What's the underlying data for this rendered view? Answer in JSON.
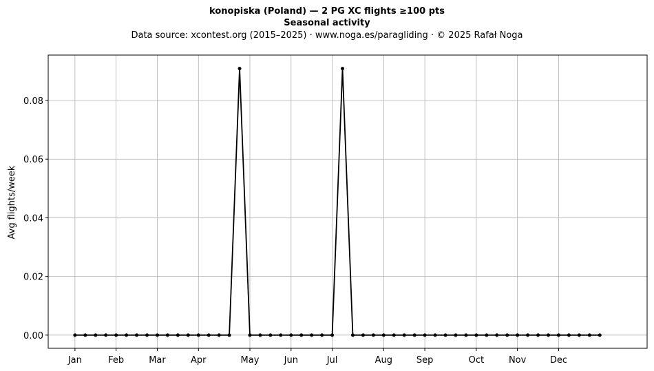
{
  "title": {
    "line1": "konopiska (Poland)  —  2 PG XC flights ≥100 pts",
    "line2": "Seasonal activity",
    "source": "Data source: xcontest.org (2015–2025)  ·  www.noga.es/paragliding  ·  © 2025 Rafał Noga"
  },
  "chart_data": {
    "type": "line",
    "title": "konopiska (Poland)  —  2 PG XC flights ≥100 pts",
    "subtitle": "Seasonal activity",
    "xlabel": "",
    "ylabel": "Avg flights/week",
    "x_unit": "week of year",
    "x": [
      1,
      2,
      3,
      4,
      5,
      6,
      7,
      8,
      9,
      10,
      11,
      12,
      13,
      14,
      15,
      16,
      17,
      18,
      19,
      20,
      21,
      22,
      23,
      24,
      25,
      26,
      27,
      28,
      29,
      30,
      31,
      32,
      33,
      34,
      35,
      36,
      37,
      38,
      39,
      40,
      41,
      42,
      43,
      44,
      45,
      46,
      47,
      48,
      49,
      50,
      51,
      52
    ],
    "series": [
      {
        "color": "#000000",
        "values": [
          0,
          0,
          0,
          0,
          0,
          0,
          0,
          0,
          0,
          0,
          0,
          0,
          0,
          0,
          0,
          0,
          0.0909,
          0,
          0,
          0,
          0,
          0,
          0,
          0,
          0,
          0,
          0.0909,
          0,
          0,
          0,
          0,
          0,
          0,
          0,
          0,
          0,
          0,
          0,
          0,
          0,
          0,
          0,
          0,
          0,
          0,
          0,
          0,
          0,
          0,
          0,
          0,
          0
        ]
      }
    ],
    "xticks": [
      {
        "label": "Jan",
        "week": 1
      },
      {
        "label": "Feb",
        "week": 5
      },
      {
        "label": "Mar",
        "week": 9
      },
      {
        "label": "Apr",
        "week": 13
      },
      {
        "label": "May",
        "week": 18
      },
      {
        "label": "Jun",
        "week": 22
      },
      {
        "label": "Jul",
        "week": 26
      },
      {
        "label": "Aug",
        "week": 31
      },
      {
        "label": "Sep",
        "week": 35
      },
      {
        "label": "Oct",
        "week": 40
      },
      {
        "label": "Nov",
        "week": 44
      },
      {
        "label": "Dec",
        "week": 48
      }
    ],
    "yticks": [
      0.0,
      0.02,
      0.04,
      0.06,
      0.08
    ],
    "ytick_labels": [
      "0.00",
      "0.02",
      "0.04",
      "0.06",
      "0.08"
    ],
    "xlim": [
      -1.6,
      56.6
    ],
    "ylim": [
      -0.0045,
      0.0955
    ],
    "grid": true,
    "legend": "none"
  }
}
